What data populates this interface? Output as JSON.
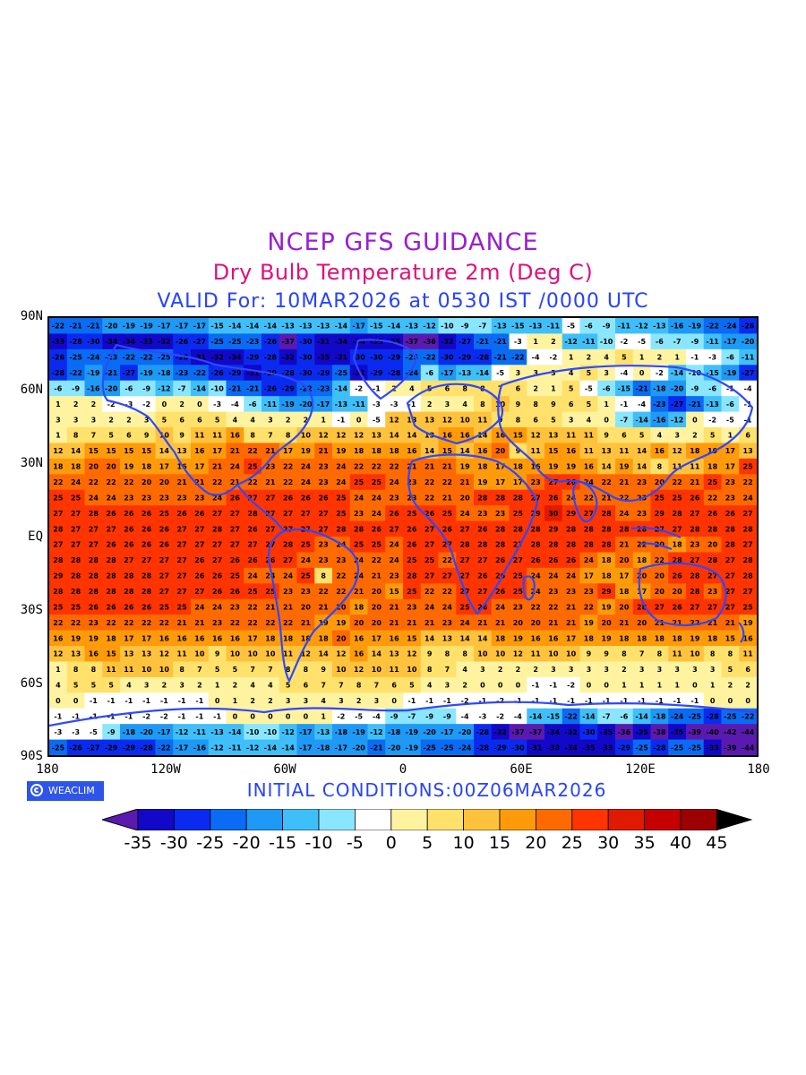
{
  "titles": {
    "line1": "NCEP GFS GUIDANCE",
    "line2": "Dry Bulb Temperature 2m (Deg C)",
    "line3": "VALID For: 10MAR2026 at 0530 IST /0000 UTC"
  },
  "map": {
    "lat_labels": [
      "90N",
      "60N",
      "30N",
      "EQ",
      "30S",
      "60S",
      "90S"
    ],
    "lon_labels": [
      "180",
      "120W",
      "60W",
      "0",
      "60E",
      "120E",
      "180"
    ],
    "land_color": "#2f48ff"
  },
  "footer": {
    "logo_text": "WEACLIM",
    "logo_icon": "copyright-circle-icon",
    "initial_conditions": "INITIAL CONDITIONS:00Z06MAR2026"
  },
  "colorbar": {
    "labels": [
      "-35",
      "-30",
      "-25",
      "-20",
      "-15",
      "-10",
      "-5",
      "0",
      "5",
      "10",
      "15",
      "20",
      "25",
      "30",
      "35",
      "40",
      "45"
    ],
    "under_color": "#5a1ab0",
    "over_color": "#000000",
    "colors": [
      "#1208c8",
      "#0a2bef",
      "#0a6bf4",
      "#1e99f5",
      "#3fbff9",
      "#8ae6ff",
      "#ffffff",
      "#fff3a0",
      "#ffe16b",
      "#ffc23d",
      "#ff9b0a",
      "#ff6a00",
      "#ff3400",
      "#e01a00",
      "#c40000",
      "#9c0000"
    ]
  },
  "chart_data": {
    "type": "heatmap",
    "variable": "Dry Bulb Temperature 2m (Deg C)",
    "lat_range": [
      -90,
      90
    ],
    "lon_range": [
      -180,
      180
    ],
    "color_levels": [
      -35,
      -30,
      -25,
      -20,
      -15,
      -10,
      -5,
      0,
      5,
      10,
      15,
      20,
      25,
      30,
      35,
      40,
      45
    ],
    "zonal_values_by_row": [
      [
        -22,
        -21,
        -21,
        -20,
        -19,
        -19,
        -17,
        -17,
        -17,
        -15,
        -14,
        -14,
        -14,
        -13,
        -13,
        -13,
        -14,
        -17,
        -15,
        -14,
        -13,
        -12,
        -10,
        -9,
        -7,
        -13,
        -15,
        -13,
        -11,
        -5,
        -6,
        -9,
        -11,
        -12,
        -13,
        -16,
        -19,
        -22,
        -24,
        -26
      ],
      [
        -33,
        -28,
        -30,
        -34,
        -34,
        -33,
        -32,
        -26,
        -27,
        -25,
        -25,
        -23,
        -26,
        -37,
        -30,
        -31,
        -34,
        -34,
        -35,
        -35,
        -37,
        -36,
        -32,
        -27,
        -21,
        -21,
        -3,
        1,
        2,
        -12,
        -11,
        -10,
        -2,
        -5,
        -6,
        -7,
        -9,
        -11,
        -17,
        -20
      ],
      [
        -26,
        -25,
        -24,
        -23,
        -22,
        -22,
        -25,
        -28,
        -31,
        -32,
        -34,
        -29,
        -28,
        -32,
        -30,
        -35,
        -31,
        -30,
        -30,
        -29,
        -25,
        -22,
        -30,
        -29,
        -28,
        -21,
        -22,
        -4,
        -2,
        1,
        2,
        4,
        5,
        1,
        2,
        1,
        -1,
        -3,
        -6,
        -11
      ],
      [
        -28,
        -22,
        -19,
        -21,
        -27,
        -19,
        -18,
        -23,
        -22,
        -26,
        -29,
        -31,
        -29,
        -28,
        -30,
        -29,
        -25,
        -31,
        -29,
        -28,
        -24,
        -6,
        -17,
        -13,
        -14,
        -5,
        3,
        3,
        3,
        4,
        5,
        3,
        -4,
        0,
        -2,
        -14,
        -10,
        -15,
        -19,
        -27
      ],
      [
        -6,
        -9,
        -16,
        -20,
        -6,
        -9,
        -12,
        -7,
        -14,
        -10,
        -21,
        -21,
        -26,
        -29,
        -22,
        -23,
        -14,
        -2,
        -1,
        2,
        4,
        5,
        6,
        8,
        8,
        7,
        6,
        2,
        1,
        5,
        -5,
        -6,
        -15,
        -21,
        -18,
        -20,
        -9,
        -6,
        -1,
        -4
      ],
      [
        1,
        2,
        2,
        -2,
        -3,
        -2,
        0,
        2,
        0,
        -3,
        -4,
        -6,
        -11,
        -19,
        -20,
        -17,
        -13,
        -11,
        -3,
        -3,
        -1,
        2,
        3,
        4,
        8,
        10,
        9,
        8,
        9,
        6,
        5,
        1,
        -1,
        -4,
        -23,
        -27,
        -21,
        -13,
        -6,
        -1
      ],
      [
        3,
        3,
        3,
        2,
        2,
        3,
        5,
        6,
        6,
        5,
        4,
        4,
        3,
        2,
        2,
        1,
        -1,
        0,
        -5,
        12,
        13,
        13,
        12,
        10,
        11,
        9,
        8,
        6,
        5,
        3,
        4,
        0,
        -7,
        -14,
        -16,
        -12,
        0,
        -2,
        -5,
        -1
      ],
      [
        1,
        8,
        7,
        5,
        6,
        9,
        10,
        9,
        11,
        11,
        16,
        8,
        7,
        8,
        10,
        12,
        12,
        12,
        13,
        14,
        14,
        13,
        16,
        16,
        14,
        16,
        15,
        12,
        13,
        11,
        11,
        9,
        6,
        5,
        4,
        3,
        2,
        5,
        1,
        6
      ],
      [
        12,
        14,
        15,
        15,
        15,
        15,
        14,
        13,
        16,
        17,
        21,
        22,
        21,
        17,
        19,
        21,
        19,
        18,
        18,
        18,
        16,
        14,
        15,
        14,
        16,
        20,
        9,
        11,
        15,
        16,
        11,
        13,
        11,
        14,
        16,
        12,
        18,
        19,
        17,
        13
      ],
      [
        18,
        18,
        20,
        20,
        19,
        18,
        17,
        16,
        17,
        21,
        24,
        25,
        23,
        22,
        24,
        23,
        24,
        22,
        22,
        22,
        21,
        21,
        21,
        19,
        18,
        17,
        18,
        16,
        19,
        19,
        16,
        14,
        19,
        14,
        8,
        11,
        11,
        18,
        17,
        25
      ],
      [
        22,
        24,
        22,
        22,
        22,
        20,
        20,
        21,
        21,
        22,
        21,
        22,
        21,
        22,
        24,
        23,
        24,
        25,
        25,
        24,
        23,
        22,
        22,
        21,
        19,
        17,
        17,
        23,
        27,
        26,
        24,
        22,
        21,
        23,
        20,
        22,
        21,
        25,
        23,
        22
      ],
      [
        25,
        25,
        24,
        24,
        23,
        23,
        23,
        23,
        23,
        24,
        26,
        27,
        27,
        26,
        26,
        26,
        25,
        24,
        24,
        23,
        23,
        22,
        21,
        20,
        28,
        28,
        28,
        27,
        26,
        24,
        22,
        21,
        22,
        23,
        25,
        25,
        26,
        22,
        23,
        24
      ],
      [
        27,
        27,
        28,
        26,
        26,
        26,
        25,
        26,
        26,
        27,
        27,
        28,
        27,
        27,
        27,
        27,
        25,
        23,
        24,
        26,
        25,
        26,
        25,
        24,
        23,
        23,
        25,
        29,
        30,
        29,
        27,
        28,
        24,
        23,
        29,
        28,
        27,
        26,
        26,
        27
      ],
      [
        28,
        27,
        27,
        27,
        26,
        26,
        26,
        27,
        27,
        28,
        27,
        26,
        27,
        27,
        27,
        27,
        28,
        28,
        26,
        27,
        26,
        27,
        26,
        27,
        26,
        28,
        28,
        28,
        29,
        28,
        28,
        28,
        28,
        28,
        27,
        27,
        28,
        28,
        28,
        28
      ],
      [
        27,
        27,
        27,
        26,
        26,
        26,
        26,
        27,
        27,
        27,
        27,
        27,
        27,
        28,
        25,
        23,
        24,
        25,
        25,
        24,
        26,
        27,
        27,
        28,
        28,
        28,
        27,
        28,
        28,
        28,
        28,
        28,
        21,
        22,
        20,
        18,
        23,
        20,
        28,
        27
      ],
      [
        28,
        28,
        28,
        28,
        27,
        27,
        27,
        27,
        26,
        27,
        26,
        26,
        26,
        27,
        24,
        23,
        23,
        24,
        22,
        24,
        25,
        25,
        22,
        27,
        27,
        26,
        27,
        26,
        26,
        26,
        24,
        18,
        20,
        18,
        22,
        28,
        27,
        28,
        27,
        28
      ],
      [
        29,
        28,
        28,
        28,
        28,
        28,
        27,
        27,
        26,
        26,
        25,
        24,
        24,
        24,
        25,
        8,
        22,
        24,
        21,
        23,
        28,
        27,
        27,
        27,
        26,
        26,
        25,
        24,
        24,
        24,
        17,
        18,
        17,
        20,
        20,
        26,
        28,
        27,
        27,
        28
      ],
      [
        28,
        28,
        28,
        28,
        28,
        28,
        27,
        27,
        27,
        26,
        26,
        25,
        25,
        23,
        23,
        22,
        22,
        21,
        20,
        15,
        25,
        22,
        22,
        27,
        27,
        26,
        25,
        24,
        23,
        23,
        23,
        29,
        18,
        17,
        20,
        20,
        28,
        23,
        27,
        27
      ],
      [
        25,
        25,
        26,
        26,
        26,
        26,
        25,
        25,
        24,
        24,
        23,
        22,
        21,
        21,
        20,
        21,
        20,
        18,
        20,
        21,
        23,
        24,
        24,
        25,
        26,
        24,
        23,
        22,
        22,
        21,
        22,
        19,
        20,
        28,
        27,
        26,
        27,
        27,
        27,
        25
      ],
      [
        22,
        22,
        23,
        22,
        22,
        22,
        22,
        21,
        21,
        23,
        22,
        22,
        22,
        22,
        21,
        19,
        19,
        20,
        20,
        21,
        21,
        21,
        23,
        24,
        21,
        21,
        20,
        20,
        21,
        21,
        19,
        20,
        21,
        20,
        21,
        21,
        22,
        21,
        21,
        19
      ],
      [
        16,
        19,
        19,
        18,
        17,
        17,
        16,
        16,
        16,
        16,
        16,
        17,
        18,
        18,
        18,
        18,
        20,
        16,
        17,
        16,
        15,
        14,
        13,
        14,
        14,
        18,
        19,
        16,
        16,
        17,
        18,
        19,
        18,
        18,
        18,
        18,
        19,
        18,
        15,
        16
      ],
      [
        12,
        13,
        16,
        15,
        13,
        13,
        12,
        11,
        10,
        9,
        10,
        10,
        10,
        11,
        12,
        14,
        12,
        16,
        14,
        13,
        12,
        9,
        8,
        8,
        10,
        10,
        12,
        11,
        10,
        10,
        9,
        9,
        8,
        7,
        8,
        11,
        10,
        8,
        8,
        11
      ],
      [
        1,
        8,
        8,
        11,
        11,
        10,
        10,
        8,
        7,
        5,
        5,
        7,
        7,
        8,
        8,
        9,
        10,
        12,
        10,
        11,
        10,
        8,
        7,
        4,
        3,
        2,
        2,
        2,
        3,
        3,
        3,
        3,
        2,
        3,
        3,
        3,
        3,
        3,
        5,
        6
      ],
      [
        4,
        5,
        5,
        5,
        4,
        3,
        2,
        3,
        2,
        1,
        2,
        4,
        4,
        5,
        6,
        7,
        7,
        8,
        7,
        6,
        5,
        4,
        3,
        2,
        0,
        0,
        0,
        -1,
        -1,
        -2,
        0,
        0,
        1,
        1,
        1,
        1,
        0,
        1,
        2,
        2
      ],
      [
        0,
        0,
        -1,
        -1,
        -1,
        -1,
        -1,
        -1,
        -1,
        0,
        1,
        2,
        2,
        3,
        3,
        4,
        3,
        2,
        3,
        0,
        -1,
        -1,
        -1,
        -2,
        -1,
        -2,
        -1,
        -1,
        -1,
        -1,
        -1,
        -1,
        -1,
        -1,
        -1,
        -1,
        -1,
        0,
        0,
        0
      ],
      [
        -1,
        -1,
        -1,
        -1,
        -1,
        -2,
        -2,
        -1,
        -1,
        -1,
        0,
        0,
        0,
        0,
        0,
        1,
        -2,
        -5,
        -4,
        -9,
        -7,
        -9,
        -9,
        -4,
        -3,
        -2,
        -4,
        -14,
        -15,
        -22,
        -14,
        -7,
        -6,
        -14,
        -18,
        -24,
        -25,
        -28,
        -25,
        -22
      ],
      [
        -3,
        -3,
        -5,
        -9,
        -18,
        -20,
        -17,
        -12,
        -11,
        -13,
        -14,
        -10,
        -10,
        -12,
        -17,
        -13,
        -18,
        -19,
        -12,
        -18,
        -19,
        -20,
        -17,
        -20,
        -28,
        -32,
        -37,
        -37,
        -34,
        -32,
        -30,
        -35,
        -36,
        -35,
        -38,
        -35,
        -39,
        -40,
        -42,
        -44
      ],
      [
        -25,
        -26,
        -27,
        -29,
        -29,
        -28,
        -22,
        -17,
        -16,
        -12,
        -11,
        -12,
        -14,
        -14,
        -17,
        -18,
        -17,
        -20,
        -21,
        -20,
        -19,
        -25,
        -25,
        -24,
        -28,
        -29,
        -30,
        -31,
        -33,
        -34,
        -35,
        -33,
        -29,
        -25,
        -28,
        -25,
        -25,
        -33,
        -39,
        -44
      ]
    ]
  }
}
